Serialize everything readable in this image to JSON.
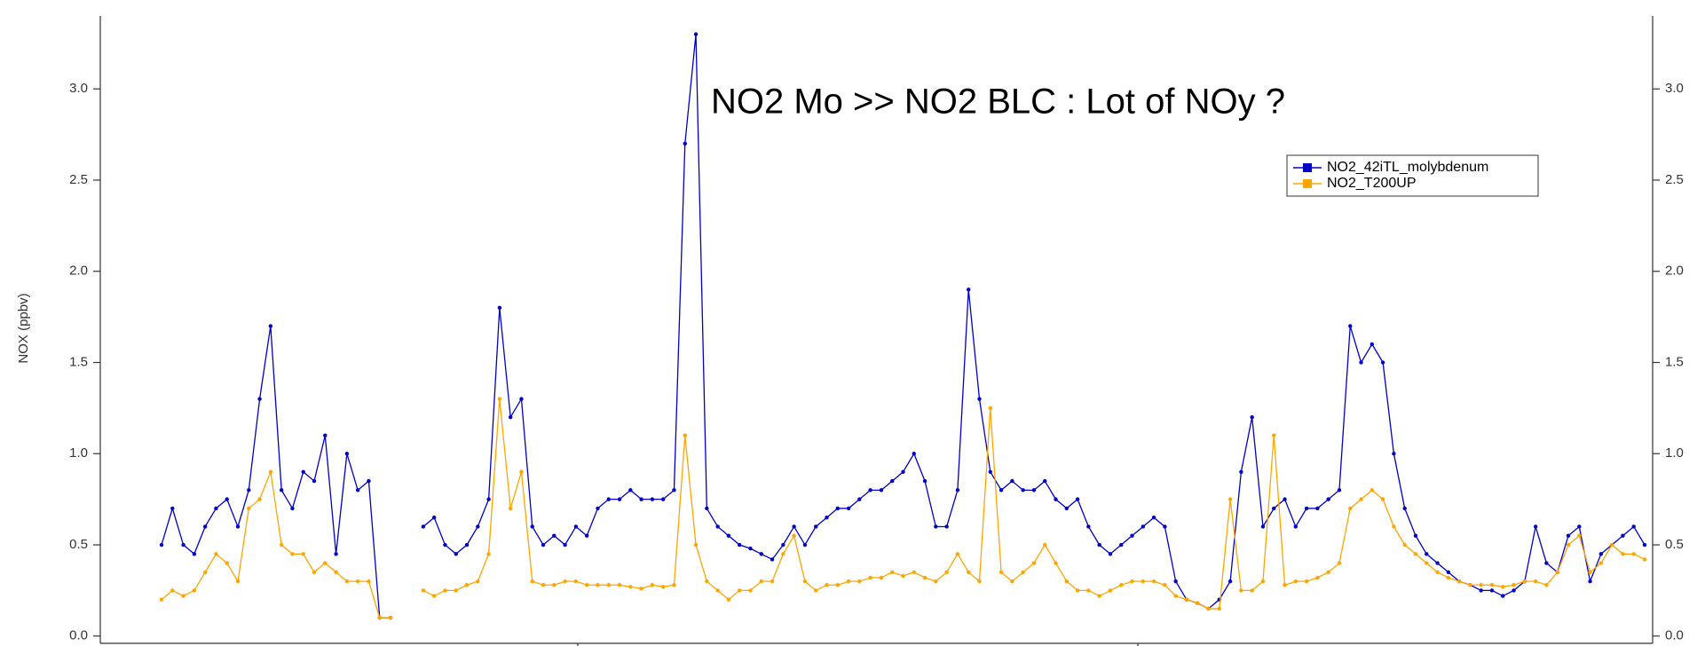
{
  "chart_data": {
    "type": "line",
    "annotation": "NO2 Mo >> NO2 BLC : Lot of NOy ?",
    "ylabel": "NOX (ppbv)",
    "ylim": [
      -0.04,
      3.4
    ],
    "yticks": [
      {
        "value": 0,
        "label": "0.0"
      },
      0.5,
      {
        "value": 1,
        "label": "1.0"
      },
      1.5,
      {
        "value": 2,
        "label": "2.0"
      },
      2.5,
      {
        "value": 3,
        "label": "3.0"
      }
    ],
    "grid": false,
    "legend": "upper right",
    "series": [
      {
        "name": "NO2_42iTL_molybdenum",
        "color": "#0000c8",
        "values": [
          0.5,
          0.7,
          0.5,
          0.45,
          0.6,
          0.7,
          0.75,
          0.6,
          0.8,
          1.3,
          1.7,
          0.8,
          0.7,
          0.9,
          0.85,
          1.1,
          0.45,
          1.0,
          0.8,
          0.85,
          0.1,
          0.1,
          null,
          null,
          0.6,
          0.65,
          0.5,
          0.45,
          0.5,
          0.6,
          0.75,
          1.8,
          1.2,
          1.3,
          0.6,
          0.5,
          0.55,
          0.5,
          0.6,
          0.55,
          0.7,
          0.75,
          0.75,
          0.8,
          0.75,
          0.75,
          0.75,
          0.8,
          2.7,
          3.3,
          0.7,
          0.6,
          0.55,
          0.5,
          0.48,
          0.45,
          0.42,
          0.5,
          0.6,
          0.5,
          0.6,
          0.65,
          0.7,
          0.7,
          0.75,
          0.8,
          0.8,
          0.85,
          0.9,
          1.0,
          0.85,
          0.6,
          0.6,
          0.8,
          1.9,
          1.3,
          0.9,
          0.8,
          0.85,
          0.8,
          0.8,
          0.85,
          0.75,
          0.7,
          0.75,
          0.6,
          0.5,
          0.45,
          0.5,
          0.55,
          0.6,
          0.65,
          0.6,
          0.3,
          0.2,
          0.18,
          0.15,
          0.2,
          0.3,
          0.9,
          1.2,
          0.6,
          0.7,
          0.75,
          0.6,
          0.7,
          0.7,
          0.75,
          0.8,
          1.7,
          1.5,
          1.6,
          1.5,
          1.0,
          0.7,
          0.55,
          0.45,
          0.4,
          0.35,
          0.3,
          0.28,
          0.25,
          0.25,
          0.22,
          0.25,
          0.3,
          0.6,
          0.4,
          0.35,
          0.55,
          0.6,
          0.3,
          0.45,
          0.5,
          0.55,
          0.6,
          0.5
        ]
      },
      {
        "name": "NO2_T200UP",
        "color": "#ffa500",
        "values": [
          0.2,
          0.25,
          0.22,
          0.25,
          0.35,
          0.45,
          0.4,
          0.3,
          0.7,
          0.75,
          0.9,
          0.5,
          0.45,
          0.45,
          0.35,
          0.4,
          0.35,
          0.3,
          0.3,
          0.3,
          0.1,
          0.1,
          null,
          null,
          0.25,
          0.22,
          0.25,
          0.25,
          0.28,
          0.3,
          0.45,
          1.3,
          0.7,
          0.9,
          0.3,
          0.28,
          0.28,
          0.3,
          0.3,
          0.28,
          0.28,
          0.28,
          0.28,
          0.27,
          0.26,
          0.28,
          0.27,
          0.28,
          1.1,
          0.5,
          0.3,
          0.25,
          0.2,
          0.25,
          0.25,
          0.3,
          0.3,
          0.45,
          0.55,
          0.3,
          0.25,
          0.28,
          0.28,
          0.3,
          0.3,
          0.32,
          0.32,
          0.35,
          0.33,
          0.35,
          0.32,
          0.3,
          0.35,
          0.45,
          0.35,
          0.3,
          1.25,
          0.35,
          0.3,
          0.35,
          0.4,
          0.5,
          0.4,
          0.3,
          0.25,
          0.25,
          0.22,
          0.25,
          0.28,
          0.3,
          0.3,
          0.3,
          0.28,
          0.22,
          0.2,
          0.18,
          0.15,
          0.15,
          0.75,
          0.25,
          0.25,
          0.3,
          1.1,
          0.28,
          0.3,
          0.3,
          0.32,
          0.35,
          0.4,
          0.7,
          0.75,
          0.8,
          0.75,
          0.6,
          0.5,
          0.45,
          0.4,
          0.35,
          0.32,
          0.3,
          0.28,
          0.28,
          0.28,
          0.27,
          0.28,
          0.3,
          0.3,
          0.28,
          0.35,
          0.5,
          0.55,
          0.35,
          0.4,
          0.5,
          0.45,
          0.45,
          0.42
        ]
      }
    ]
  }
}
